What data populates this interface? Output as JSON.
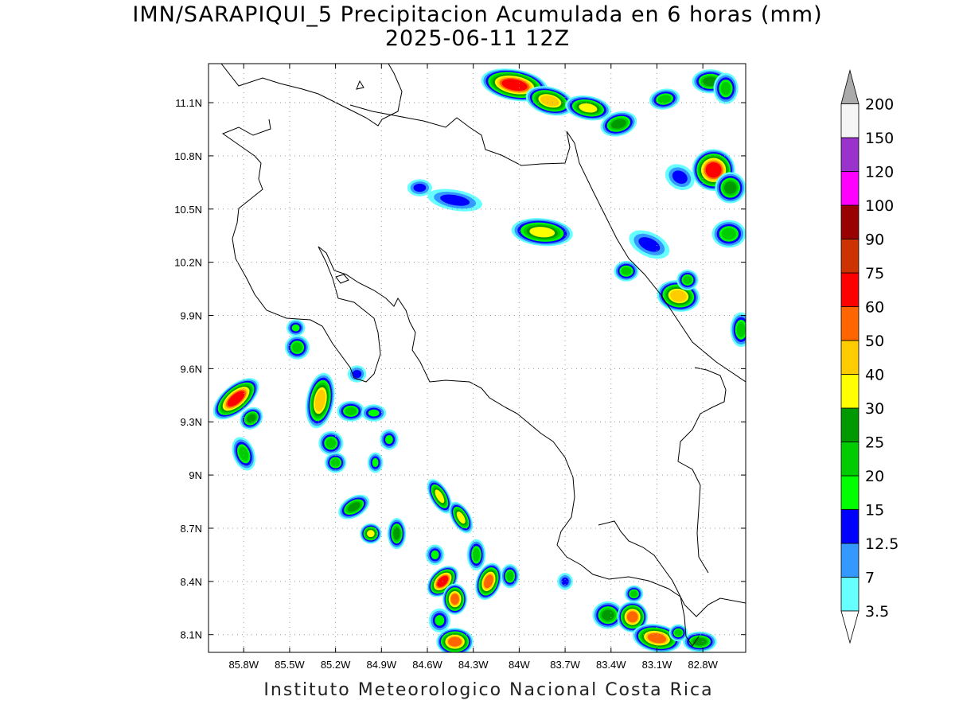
{
  "title": {
    "line1": "IMN/SARAPIQUI_5 Precipitacion Acumulada en 6 horas (mm)",
    "line2": "2025-06-11 12Z"
  },
  "credit": "Instituto Meteorologico Nacional Costa Rica",
  "map": {
    "lon_range": [
      -86.03,
      -82.52
    ],
    "lat_range": [
      8.0,
      11.32
    ],
    "lon_ticks": [
      {
        "value": -85.8,
        "label": "85.8W"
      },
      {
        "value": -85.5,
        "label": "85.5W"
      },
      {
        "value": -85.2,
        "label": "85.2W"
      },
      {
        "value": -84.9,
        "label": "84.9W"
      },
      {
        "value": -84.6,
        "label": "84.6W"
      },
      {
        "value": -84.3,
        "label": "84.3W"
      },
      {
        "value": -84.0,
        "label": "84W"
      },
      {
        "value": -83.7,
        "label": "83.7W"
      },
      {
        "value": -83.4,
        "label": "83.4W"
      },
      {
        "value": -83.1,
        "label": "83.1W"
      },
      {
        "value": -82.8,
        "label": "82.8W"
      }
    ],
    "lat_ticks": [
      {
        "value": 8.1,
        "label": "8.1N"
      },
      {
        "value": 8.4,
        "label": "8.4N"
      },
      {
        "value": 8.7,
        "label": "8.7N"
      },
      {
        "value": 9.0,
        "label": "9N"
      },
      {
        "value": 9.3,
        "label": "9.3N"
      },
      {
        "value": 9.6,
        "label": "9.6N"
      },
      {
        "value": 9.9,
        "label": "9.9N"
      },
      {
        "value": 10.2,
        "label": "10.2N"
      },
      {
        "value": 10.5,
        "label": "10.5N"
      },
      {
        "value": 10.8,
        "label": "10.8N"
      },
      {
        "value": 11.1,
        "label": "11.1N"
      }
    ],
    "grid": "dotted"
  },
  "colorbar": {
    "units": "mm",
    "levels": [
      {
        "label": "3.5",
        "color": "#66ffff"
      },
      {
        "label": "7",
        "color": "#3399ff"
      },
      {
        "label": "12.5",
        "color": "#0000ff"
      },
      {
        "label": "15",
        "color": "#00ff00"
      },
      {
        "label": "20",
        "color": "#00cc00"
      },
      {
        "label": "25",
        "color": "#009900"
      },
      {
        "label": "30",
        "color": "#ffff00"
      },
      {
        "label": "40",
        "color": "#ffcc00"
      },
      {
        "label": "50",
        "color": "#ff6600"
      },
      {
        "label": "60",
        "color": "#ff0000"
      },
      {
        "label": "75",
        "color": "#cc3300"
      },
      {
        "label": "90",
        "color": "#990000"
      },
      {
        "label": "100",
        "color": "#ff00ff"
      },
      {
        "label": "120",
        "color": "#9933cc"
      },
      {
        "label": "150",
        "color": "#f5f5f5"
      },
      {
        "label": "200",
        "color": "#aaaaaa"
      }
    ]
  },
  "precip_cells": [
    {
      "lon": -84.03,
      "lat": 11.2,
      "rx": 0.2,
      "ry": 0.07,
      "rot": 10,
      "peak": 10
    },
    {
      "lon": -83.8,
      "lat": 11.11,
      "rx": 0.14,
      "ry": 0.06,
      "rot": 15,
      "peak": 8
    },
    {
      "lon": -83.55,
      "lat": 11.07,
      "rx": 0.13,
      "ry": 0.05,
      "rot": 10,
      "peak": 7
    },
    {
      "lon": -83.35,
      "lat": 10.98,
      "rx": 0.1,
      "ry": 0.05,
      "rot": -15,
      "peak": 6
    },
    {
      "lon": -83.05,
      "lat": 11.12,
      "rx": 0.08,
      "ry": 0.04,
      "rot": -10,
      "peak": 5
    },
    {
      "lon": -82.75,
      "lat": 11.22,
      "rx": 0.1,
      "ry": 0.05,
      "rot": 0,
      "peak": 6
    },
    {
      "lon": -82.65,
      "lat": 11.18,
      "rx": 0.06,
      "ry": 0.07,
      "rot": 0,
      "peak": 5
    },
    {
      "lon": -82.73,
      "lat": 10.72,
      "rx": 0.12,
      "ry": 0.1,
      "rot": 0,
      "peak": 10
    },
    {
      "lon": -82.62,
      "lat": 10.62,
      "rx": 0.08,
      "ry": 0.07,
      "rot": 0,
      "peak": 6
    },
    {
      "lon": -82.63,
      "lat": 10.36,
      "rx": 0.09,
      "ry": 0.06,
      "rot": 0,
      "peak": 5
    },
    {
      "lon": -82.95,
      "lat": 10.68,
      "rx": 0.08,
      "ry": 0.05,
      "rot": 30,
      "peak": 3
    },
    {
      "lon": -83.85,
      "lat": 10.37,
      "rx": 0.18,
      "ry": 0.06,
      "rot": 5,
      "peak": 7
    },
    {
      "lon": -83.15,
      "lat": 10.3,
      "rx": 0.12,
      "ry": 0.05,
      "rot": 25,
      "peak": 3
    },
    {
      "lon": -83.3,
      "lat": 10.15,
      "rx": 0.06,
      "ry": 0.04,
      "rot": 0,
      "peak": 5
    },
    {
      "lon": -82.96,
      "lat": 10.01,
      "rx": 0.12,
      "ry": 0.07,
      "rot": 10,
      "peak": 8
    },
    {
      "lon": -82.9,
      "lat": 10.1,
      "rx": 0.05,
      "ry": 0.04,
      "rot": 0,
      "peak": 5
    },
    {
      "lon": -82.55,
      "lat": 9.82,
      "rx": 0.05,
      "ry": 0.08,
      "rot": 0,
      "peak": 5
    },
    {
      "lon": -84.65,
      "lat": 10.62,
      "rx": 0.06,
      "ry": 0.03,
      "rot": 0,
      "peak": 3
    },
    {
      "lon": -84.42,
      "lat": 10.55,
      "rx": 0.16,
      "ry": 0.04,
      "rot": 10,
      "peak": 3
    },
    {
      "lon": -85.45,
      "lat": 9.72,
      "rx": 0.06,
      "ry": 0.05,
      "rot": 0,
      "peak": 5
    },
    {
      "lon": -85.46,
      "lat": 9.83,
      "rx": 0.04,
      "ry": 0.03,
      "rot": 0,
      "peak": 4
    },
    {
      "lon": -85.85,
      "lat": 9.43,
      "rx": 0.16,
      "ry": 0.06,
      "rot": -40,
      "peak": 10
    },
    {
      "lon": -85.75,
      "lat": 9.32,
      "rx": 0.06,
      "ry": 0.04,
      "rot": -40,
      "peak": 6
    },
    {
      "lon": -85.8,
      "lat": 9.12,
      "rx": 0.05,
      "ry": 0.08,
      "rot": -20,
      "peak": 5
    },
    {
      "lon": -85.3,
      "lat": 9.42,
      "rx": 0.07,
      "ry": 0.14,
      "rot": 10,
      "peak": 8
    },
    {
      "lon": -85.23,
      "lat": 9.18,
      "rx": 0.06,
      "ry": 0.05,
      "rot": 0,
      "peak": 5
    },
    {
      "lon": -85.2,
      "lat": 9.07,
      "rx": 0.05,
      "ry": 0.04,
      "rot": 0,
      "peak": 5
    },
    {
      "lon": -85.1,
      "lat": 9.36,
      "rx": 0.07,
      "ry": 0.04,
      "rot": 0,
      "peak": 5
    },
    {
      "lon": -84.95,
      "lat": 9.35,
      "rx": 0.06,
      "ry": 0.03,
      "rot": 0,
      "peak": 4
    },
    {
      "lon": -85.06,
      "lat": 9.57,
      "rx": 0.04,
      "ry": 0.03,
      "rot": 0,
      "peak": 3
    },
    {
      "lon": -85.08,
      "lat": 8.82,
      "rx": 0.09,
      "ry": 0.04,
      "rot": -30,
      "peak": 6
    },
    {
      "lon": -84.97,
      "lat": 8.67,
      "rx": 0.05,
      "ry": 0.04,
      "rot": 0,
      "peak": 7
    },
    {
      "lon": -84.85,
      "lat": 9.2,
      "rx": 0.04,
      "ry": 0.04,
      "rot": 0,
      "peak": 4
    },
    {
      "lon": -84.94,
      "lat": 9.07,
      "rx": 0.03,
      "ry": 0.04,
      "rot": 0,
      "peak": 4
    },
    {
      "lon": -84.8,
      "lat": 8.67,
      "rx": 0.04,
      "ry": 0.07,
      "rot": 0,
      "peak": 6
    },
    {
      "lon": -84.52,
      "lat": 8.88,
      "rx": 0.04,
      "ry": 0.09,
      "rot": -30,
      "peak": 7
    },
    {
      "lon": -84.38,
      "lat": 8.76,
      "rx": 0.04,
      "ry": 0.08,
      "rot": -30,
      "peak": 7
    },
    {
      "lon": -84.55,
      "lat": 8.55,
      "rx": 0.04,
      "ry": 0.04,
      "rot": 0,
      "peak": 4
    },
    {
      "lon": -84.5,
      "lat": 8.4,
      "rx": 0.1,
      "ry": 0.05,
      "rot": -45,
      "peak": 10
    },
    {
      "lon": -84.42,
      "lat": 8.3,
      "rx": 0.06,
      "ry": 0.07,
      "rot": 0,
      "peak": 9
    },
    {
      "lon": -84.28,
      "lat": 8.55,
      "rx": 0.04,
      "ry": 0.07,
      "rot": 0,
      "peak": 5
    },
    {
      "lon": -84.2,
      "lat": 8.4,
      "rx": 0.06,
      "ry": 0.09,
      "rot": 20,
      "peak": 9
    },
    {
      "lon": -84.06,
      "lat": 8.43,
      "rx": 0.04,
      "ry": 0.05,
      "rot": 0,
      "peak": 5
    },
    {
      "lon": -84.52,
      "lat": 8.18,
      "rx": 0.05,
      "ry": 0.05,
      "rot": 0,
      "peak": 4
    },
    {
      "lon": -84.42,
      "lat": 8.06,
      "rx": 0.1,
      "ry": 0.06,
      "rot": 0,
      "peak": 9
    },
    {
      "lon": -83.7,
      "lat": 8.4,
      "rx": 0.03,
      "ry": 0.03,
      "rot": 0,
      "peak": 3
    },
    {
      "lon": -83.42,
      "lat": 8.21,
      "rx": 0.08,
      "ry": 0.06,
      "rot": 0,
      "peak": 6
    },
    {
      "lon": -83.26,
      "lat": 8.2,
      "rx": 0.08,
      "ry": 0.07,
      "rot": 0,
      "peak": 9
    },
    {
      "lon": -83.25,
      "lat": 8.33,
      "rx": 0.04,
      "ry": 0.03,
      "rot": 0,
      "peak": 5
    },
    {
      "lon": -83.1,
      "lat": 8.08,
      "rx": 0.14,
      "ry": 0.06,
      "rot": 10,
      "peak": 9
    },
    {
      "lon": -82.82,
      "lat": 8.06,
      "rx": 0.09,
      "ry": 0.04,
      "rot": 0,
      "peak": 6
    },
    {
      "lon": -82.96,
      "lat": 8.11,
      "rx": 0.04,
      "ry": 0.03,
      "rot": 0,
      "peak": 5
    }
  ]
}
